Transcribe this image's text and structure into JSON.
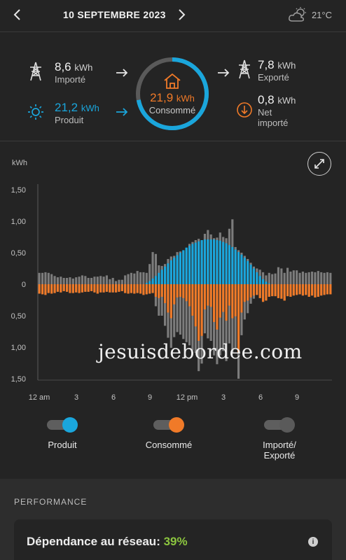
{
  "header": {
    "date": "10 SEPTEMBRE 2023",
    "weather_icon": "partly-cloudy-icon",
    "temperature": "21°C"
  },
  "summary": {
    "imported": {
      "value": "8,6",
      "unit": "kWh",
      "label": "Importé",
      "icon": "power-pylon-icon"
    },
    "produced": {
      "value": "21,2",
      "unit": "kWh",
      "label": "Produit",
      "icon": "sun-icon"
    },
    "consumed": {
      "value": "21,9",
      "unit": "kWh",
      "label": "Consommé",
      "icon": "home-icon"
    },
    "exported": {
      "value": "7,8",
      "unit": "kWh",
      "label": "Exporté",
      "icon": "power-pylon-icon"
    },
    "net_imported": {
      "value": "0,8",
      "unit": "kWh",
      "label_line1": "Net",
      "label_line2": "importé",
      "icon": "down-arrow-circle-icon"
    },
    "ring_progress": 0.72
  },
  "colors": {
    "blue": "#1aa6dc",
    "orange": "#f07a28",
    "gray": "#7c7c7c",
    "green": "#8cc63f"
  },
  "chart": {
    "unit_label": "kWh",
    "y_tick_labels": [
      "1,50",
      "1,00",
      "0,50",
      "0",
      "0,50",
      "1,00",
      "1,50"
    ],
    "x_tick_labels": [
      "12 am",
      "3",
      "6",
      "9",
      "12 pm",
      "3",
      "6",
      "9"
    ]
  },
  "chart_data": {
    "type": "bar",
    "ylabel": "kWh",
    "ylim": [
      -1.5,
      1.5
    ],
    "x_interval_minutes": 15,
    "series": [
      {
        "name": "Produit",
        "color": "#1aa6dc",
        "direction": "up",
        "values": [
          0,
          0,
          0,
          0,
          0,
          0,
          0,
          0,
          0,
          0,
          0,
          0,
          0,
          0,
          0,
          0,
          0,
          0,
          0,
          0,
          0,
          0,
          0,
          0,
          0,
          0,
          0,
          0,
          0,
          0,
          0,
          0,
          0,
          0,
          0,
          0.02,
          0.05,
          0.09,
          0.13,
          0.18,
          0.23,
          0.28,
          0.33,
          0.38,
          0.42,
          0.46,
          0.5,
          0.54,
          0.58,
          0.61,
          0.64,
          0.66,
          0.68,
          0.7,
          0.71,
          0.71,
          0.71,
          0.71,
          0.7,
          0.69,
          0.67,
          0.65,
          0.62,
          0.59,
          0.55,
          0.51,
          0.47,
          0.42,
          0.37,
          0.31,
          0.25,
          0.19,
          0.13,
          0.08,
          0.04,
          0.01,
          0,
          0,
          0,
          0,
          0,
          0,
          0,
          0,
          0,
          0,
          0,
          0,
          0,
          0,
          0,
          0,
          0,
          0,
          0,
          0
        ]
      },
      {
        "name": "Importé/Exporté (au-dessus)",
        "color": "#7c7c7c",
        "direction": "up",
        "values": [
          0.18,
          0.18,
          0.19,
          0.18,
          0.16,
          0.13,
          0.11,
          0.12,
          0.1,
          0.1,
          0.11,
          0.09,
          0.11,
          0.12,
          0.14,
          0.13,
          0.1,
          0.1,
          0.12,
          0.12,
          0.13,
          0.12,
          0.14,
          0.08,
          0.1,
          0.05,
          0.07,
          0.07,
          0.14,
          0.16,
          0.18,
          0.17,
          0.21,
          0.19,
          0.19,
          0.18,
          0.32,
          0.51,
          0.48,
          0.3,
          0.29,
          0.32,
          0.4,
          0.44,
          0.45,
          0.51,
          0.52,
          0.52,
          0.58,
          0.64,
          0.67,
          0.7,
          0.72,
          0.7,
          0.8,
          0.86,
          0.79,
          0.73,
          0.74,
          0.82,
          0.75,
          0.73,
          0.88,
          1.03,
          0.59,
          0.54,
          0.5,
          0.45,
          0.4,
          0.34,
          0.28,
          0.25,
          0.23,
          0.19,
          0.14,
          0.18,
          0.16,
          0.17,
          0.27,
          0.25,
          0.18,
          0.26,
          0.2,
          0.22,
          0.22,
          0.18,
          0.2,
          0.18,
          0.19,
          0.2,
          0.19,
          0.21,
          0.19,
          0.18,
          0.19,
          0.18
        ]
      },
      {
        "name": "Consommé",
        "color": "#f07a28",
        "direction": "down",
        "values": [
          0.15,
          0.16,
          0.17,
          0.14,
          0.15,
          0.14,
          0.12,
          0.13,
          0.11,
          0.12,
          0.14,
          0.14,
          0.13,
          0.14,
          0.13,
          0.12,
          0.12,
          0.11,
          0.13,
          0.15,
          0.13,
          0.13,
          0.12,
          0.13,
          0.13,
          0.13,
          0.12,
          0.11,
          0.14,
          0.15,
          0.14,
          0.15,
          0.14,
          0.15,
          0.17,
          0.16,
          0.15,
          0.14,
          0.2,
          0.22,
          0.2,
          0.3,
          0.45,
          0.54,
          0.32,
          0.21,
          0.2,
          0.22,
          0.27,
          0.35,
          0.5,
          0.67,
          0.9,
          0.82,
          0.4,
          0.34,
          0.36,
          0.6,
          0.72,
          0.53,
          0.44,
          0.58,
          0.34,
          0.54,
          0.51,
          1.08,
          0.45,
          0.28,
          0.26,
          0.21,
          0.18,
          0.17,
          0.22,
          0.28,
          0.26,
          0.2,
          0.19,
          0.19,
          0.22,
          0.23,
          0.26,
          0.19,
          0.2,
          0.18,
          0.17,
          0.16,
          0.18,
          0.17,
          0.2,
          0.18,
          0.21,
          0.2,
          0.18,
          0.17,
          0.16,
          0.16
        ]
      },
      {
        "name": "Importé/Exporté (en dessous)",
        "color": "#7c7c7c",
        "direction": "down",
        "values": [
          0,
          0,
          0,
          0,
          0,
          0,
          0,
          0,
          0,
          0,
          0,
          0,
          0,
          0,
          0,
          0,
          0,
          0,
          0,
          0,
          0,
          0,
          0,
          0,
          0,
          0,
          0,
          0,
          0,
          0,
          0,
          0,
          0,
          0,
          0,
          0,
          0,
          0,
          0.15,
          0.28,
          0.3,
          0.36,
          0.4,
          0.47,
          0.52,
          0.55,
          0.6,
          0.65,
          0.65,
          0.62,
          0.55,
          0.42,
          0.48,
          0.44,
          0.38,
          0.52,
          0.54,
          0.53,
          0.55,
          0.6,
          0.62,
          0.64,
          0.6,
          0.55,
          0.5,
          0.42,
          0.36,
          0.28,
          0.2,
          0.1,
          0.05,
          0,
          0,
          0,
          0,
          0,
          0,
          0,
          0,
          0,
          0,
          0,
          0,
          0,
          0,
          0,
          0,
          0,
          0,
          0,
          0,
          0,
          0,
          0,
          0,
          0
        ]
      }
    ]
  },
  "toggles": [
    {
      "label": "Produit",
      "color": "#1aa6dc"
    },
    {
      "label": "Consommé",
      "color": "#f07a28"
    },
    {
      "label": "Importé/",
      "label2": "Exporté",
      "color": "#5a5a5a"
    }
  ],
  "watermark": "jesuisdebordee.com",
  "performance": {
    "title": "PERFORMANCE",
    "card_label": "Dépendance au réseau:",
    "card_value": "39%"
  }
}
